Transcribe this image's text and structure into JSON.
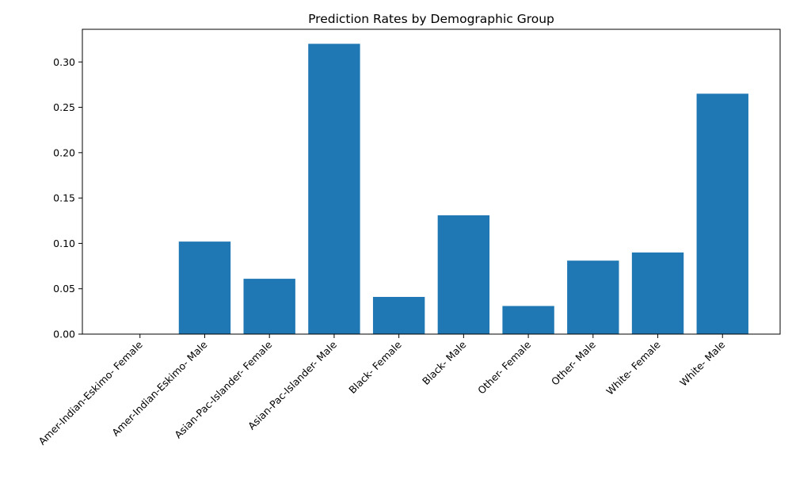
{
  "chart_data": {
    "type": "bar",
    "title": "Prediction Rates by Demographic Group",
    "xlabel": "",
    "ylabel": "",
    "categories": [
      "Amer-Indian-Eskimo- Female",
      "Amer-Indian-Eskimo- Male",
      "Asian-Pac-Islander- Female",
      "Asian-Pac-Islander- Male",
      "Black- Female",
      "Black- Male",
      "Other- Female",
      "Other- Male",
      "White- Female",
      "White- Male"
    ],
    "values": [
      0.0,
      0.102,
      0.061,
      0.32,
      0.041,
      0.131,
      0.031,
      0.081,
      0.09,
      0.265
    ],
    "ylim": [
      0,
      0.336
    ],
    "yticks": [
      0.0,
      0.05,
      0.1,
      0.15,
      0.2,
      0.25,
      0.3
    ],
    "ytick_labels": [
      "0.00",
      "0.05",
      "0.10",
      "0.15",
      "0.20",
      "0.25",
      "0.30"
    ],
    "bar_color": "#1f77b4",
    "grid": false,
    "legend": "none"
  }
}
